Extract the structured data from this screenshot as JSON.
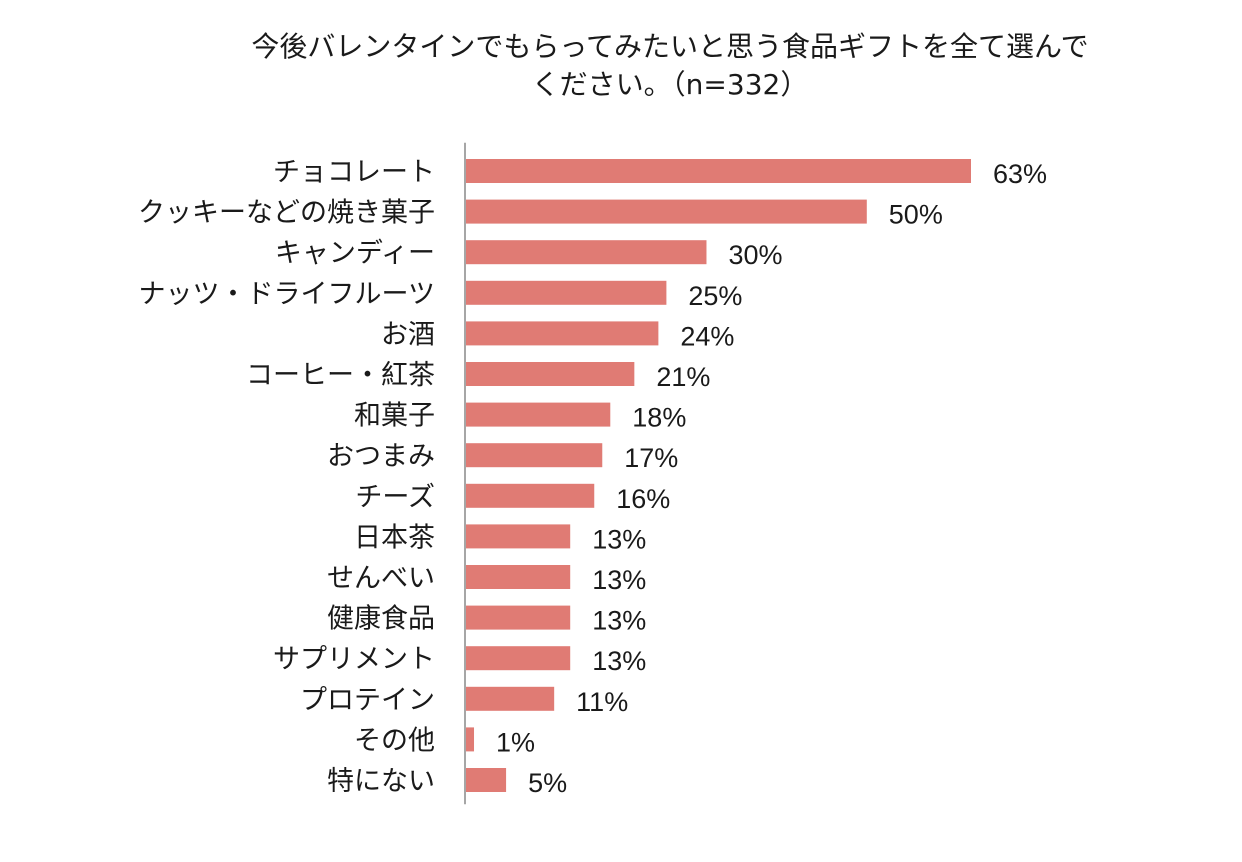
{
  "chart_data": {
    "type": "bar",
    "orientation": "horizontal",
    "title_line1": "今後バレンタインでもらってみたいと思う食品ギフトを全て選んで",
    "title_line2": "ください。（n=332）",
    "categories": [
      "チョコレート",
      "クッキーなどの焼き菓子",
      "キャンディー",
      "ナッツ・ドライフルーツ",
      "お酒",
      "コーヒー・紅茶",
      "和菓子",
      "おつまみ",
      "チーズ",
      "日本茶",
      "せんべい",
      "健康食品",
      "サプリメント",
      "プロテイン",
      "その他",
      "特にない"
    ],
    "values": [
      63,
      50,
      30,
      25,
      24,
      21,
      18,
      17,
      16,
      13,
      13,
      13,
      13,
      11,
      1,
      5
    ],
    "value_labels": [
      "63%",
      "50%",
      "30%",
      "25%",
      "24%",
      "21%",
      "18%",
      "17%",
      "16%",
      "13%",
      "13%",
      "13%",
      "13%",
      "11%",
      "1%",
      "5%"
    ],
    "unit": "%",
    "xlim": [
      0,
      63
    ],
    "grid": false,
    "legend": "none",
    "bar_color": "#e07b74",
    "axis_color": "#a6a6a6"
  }
}
